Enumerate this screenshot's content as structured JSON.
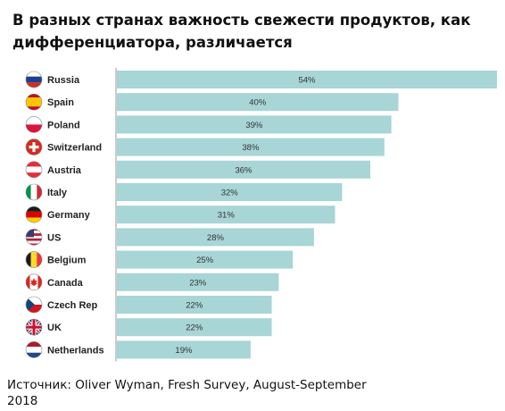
{
  "title": "В разных странах важность свежести продуктов, как дифференциатора, различается",
  "source": "Источник: Oliver Wyman, Fresh Survey, August-September 2018",
  "colors": {
    "bar": "#a8d5d6",
    "axis": "#9a9a9a"
  },
  "chart_data": {
    "type": "bar",
    "orientation": "horizontal",
    "title": "В разных странах важность свежести продуктов, как дифференциатора, различается",
    "categories": [
      "Russia",
      "Spain",
      "Poland",
      "Switzerland",
      "Austria",
      "Italy",
      "Germany",
      "US",
      "Belgium",
      "Canada",
      "Czech Rep",
      "UK",
      "Netherlands"
    ],
    "values": [
      54,
      40,
      39,
      38,
      36,
      32,
      31,
      28,
      25,
      23,
      22,
      22,
      19
    ],
    "value_labels": [
      "54%",
      "40%",
      "39%",
      "38%",
      "36%",
      "32%",
      "31%",
      "28%",
      "25%",
      "23%",
      "22%",
      "22%",
      "19%"
    ],
    "icons": [
      "flag-russia-icon",
      "flag-spain-icon",
      "flag-poland-icon",
      "flag-switzerland-icon",
      "flag-austria-icon",
      "flag-italy-icon",
      "flag-germany-icon",
      "flag-us-icon",
      "flag-belgium-icon",
      "flag-canada-icon",
      "flag-czech-icon",
      "flag-uk-icon",
      "flag-netherlands-icon"
    ],
    "xlim": [
      0,
      54
    ],
    "grid": false,
    "legend": "none"
  }
}
